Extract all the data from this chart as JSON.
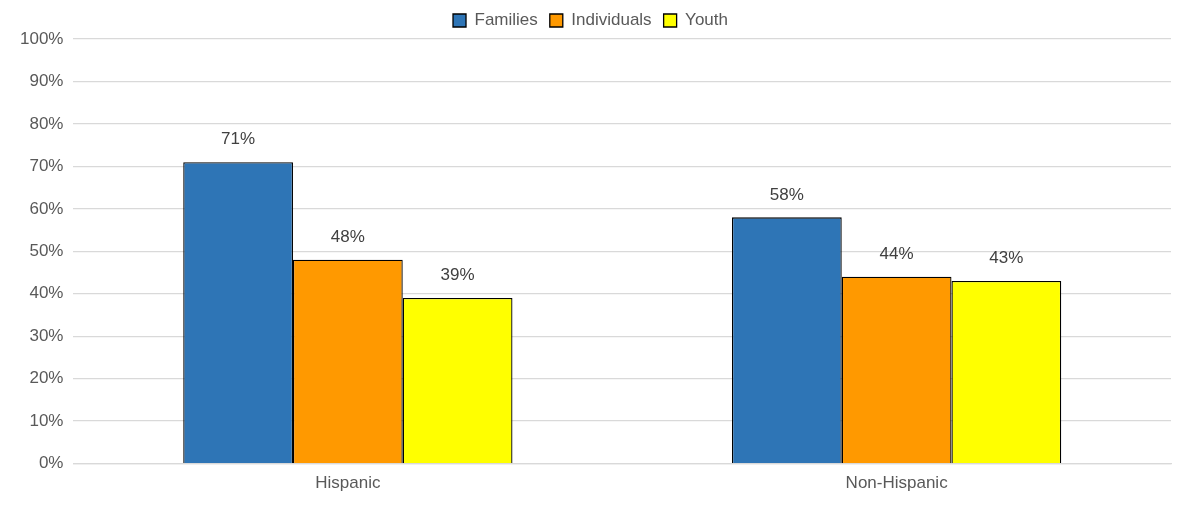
{
  "chart_data": {
    "type": "bar",
    "categories": [
      "Hispanic",
      "Non-Hispanic"
    ],
    "series": [
      {
        "name": "Families",
        "color": "#2e75b6",
        "values": [
          71,
          58
        ]
      },
      {
        "name": "Individuals",
        "color": "#ff9900",
        "values": [
          48,
          44
        ]
      },
      {
        "name": "Youth",
        "color": "#ffff00",
        "values": [
          39,
          43
        ]
      }
    ],
    "ylim": [
      0,
      100
    ],
    "yticks": [
      {
        "value": 0,
        "label": "0%"
      },
      {
        "value": 10,
        "label": "10%"
      },
      {
        "value": 20,
        "label": "20%"
      },
      {
        "value": 30,
        "label": "30%"
      },
      {
        "value": 40,
        "label": "40%"
      },
      {
        "value": 50,
        "label": "50%"
      },
      {
        "value": 60,
        "label": "60%"
      },
      {
        "value": 70,
        "label": "70%"
      },
      {
        "value": 80,
        "label": "80%"
      },
      {
        "value": 90,
        "label": "90%"
      },
      {
        "value": 100,
        "label": "100%"
      }
    ],
    "value_labels": [
      [
        "71%",
        "58%"
      ],
      [
        "48%",
        "44%"
      ],
      [
        "39%",
        "43%"
      ]
    ],
    "grid": "y",
    "legend": "top"
  }
}
